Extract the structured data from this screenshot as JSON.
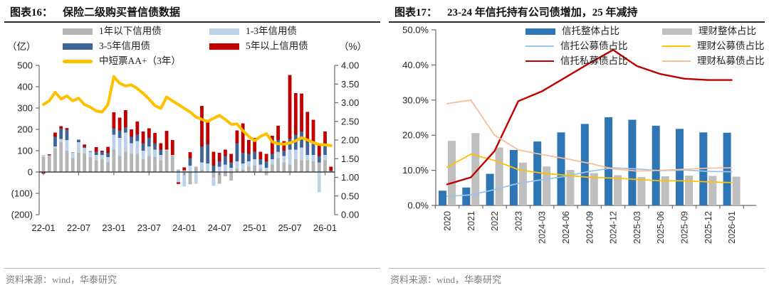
{
  "panels": [
    {
      "header": {
        "tag": "图表16：",
        "title": "保险二级购买普信债数据"
      },
      "source": "资料来源：wind，华泰研究"
    },
    {
      "header": {
        "tag": "图表17：",
        "title": "23-24 年信托持有公司债增加，25 年减持"
      },
      "source": "资料来源：wind，华泰研究"
    }
  ],
  "colors": {
    "bar_gray": "#b5b5b5",
    "bar_lightblue": "#bdd1e8",
    "bar_darkblue": "#3f6597",
    "bar_red": "#c00000",
    "line_yellow": "#ffc000",
    "r_bar_blue": "#2e75b6",
    "r_bar_gray": "#bfbfbf",
    "r_line_lightblue": "#9dc3e6",
    "r_line_yellow": "#ffc000",
    "r_line_red": "#c00000",
    "r_line_orange": "#f5bf9a",
    "axis": "#6a6a6a",
    "zero_line": "#1a1a1a",
    "tick_text": "#262626"
  },
  "chart_data": [
    {
      "type": "bar",
      "title": "保险二级购买普信债数据",
      "left_axis_label": "（亿）",
      "right_axis_label": "（%）",
      "left_ylim": [
        -200,
        500
      ],
      "right_ylim": [
        0,
        4
      ],
      "grid": false,
      "legend_position": "top",
      "left_yticks": [
        [
          500,
          "500"
        ],
        [
          400,
          "400"
        ],
        [
          300,
          "300"
        ],
        [
          200,
          "200"
        ],
        [
          100,
          "100"
        ],
        [
          0,
          "0"
        ],
        [
          -100,
          "(100)"
        ],
        [
          -200,
          "(200)"
        ]
      ],
      "right_yticks": [
        [
          4,
          "4.00"
        ],
        [
          3.5,
          "3.50"
        ],
        [
          3,
          "3.00"
        ],
        [
          2.5,
          "2.50"
        ],
        [
          2,
          "2.00"
        ],
        [
          1.5,
          "1.50"
        ],
        [
          1,
          "1.00"
        ],
        [
          0.5,
          "0.50"
        ],
        [
          0,
          "0.00"
        ]
      ],
      "x_tick_labels": [
        "22-01",
        "22-07",
        "23-01",
        "23-07",
        "24-01",
        "24-07",
        "25-01",
        "25-07",
        "26-01"
      ],
      "x_tick_month_index": [
        0,
        6,
        12,
        18,
        24,
        30,
        36,
        42,
        48
      ],
      "months": [
        "22-01",
        "22-02",
        "22-03",
        "22-04",
        "22-05",
        "22-06",
        "22-07",
        "22-08",
        "22-09",
        "22-10",
        "22-11",
        "22-12",
        "23-01",
        "23-02",
        "23-03",
        "23-04",
        "23-05",
        "23-06",
        "23-07",
        "23-08",
        "23-09",
        "23-10",
        "23-11",
        "23-12",
        "24-01",
        "24-02",
        "24-03",
        "24-04",
        "24-05",
        "24-06",
        "24-07",
        "24-08",
        "24-09",
        "24-10",
        "24-11",
        "24-12",
        "25-01",
        "25-02",
        "25-03",
        "25-04",
        "25-05",
        "25-06",
        "25-07",
        "25-08",
        "25-09",
        "25-10",
        "25-11",
        "25-12",
        "26-01",
        "26-02"
      ],
      "series": [
        {
          "name": "1年以下信用债",
          "type": "bar",
          "axis": "left",
          "color": "#b5b5b5",
          "swatch": "bar",
          "values": [
            70,
            75,
            110,
            140,
            100,
            65,
            90,
            88,
            70,
            55,
            60,
            45,
            105,
            75,
            95,
            85,
            85,
            60,
            75,
            70,
            55,
            100,
            78,
            12,
            8,
            -58,
            25,
            10,
            0,
            -25,
            -55,
            -20,
            -40,
            15,
            10,
            25,
            30,
            15,
            -15,
            35,
            65,
            45,
            35,
            60,
            55,
            55,
            50,
            45,
            55,
            5
          ]
        },
        {
          "name": "1-3年信用债",
          "type": "bar",
          "axis": "left",
          "color": "#bdd1e8",
          "swatch": "bar",
          "values": [
            10,
            3,
            10,
            15,
            50,
            25,
            50,
            25,
            25,
            25,
            20,
            25,
            70,
            85,
            90,
            50,
            60,
            40,
            45,
            35,
            25,
            5,
            2,
            -48,
            -68,
            30,
            -55,
            35,
            40,
            -40,
            25,
            35,
            20,
            35,
            30,
            25,
            30,
            20,
            20,
            25,
            30,
            30,
            70,
            45,
            60,
            25,
            30,
            -95,
            25,
            0
          ]
        },
        {
          "name": "3-5年信用债",
          "type": "bar",
          "axis": "left",
          "color": "#3f6597",
          "swatch": "bar",
          "values": [
            0,
            0,
            45,
            48,
            48,
            2,
            12,
            4,
            3,
            15,
            15,
            20,
            30,
            35,
            25,
            30,
            30,
            35,
            40,
            30,
            25,
            0,
            0,
            0,
            0,
            35,
            0,
            75,
            90,
            30,
            25,
            40,
            25,
            85,
            50,
            35,
            35,
            25,
            30,
            25,
            55,
            25,
            50,
            70,
            75,
            60,
            65,
            30,
            55,
            0
          ]
        },
        {
          "name": "5年以上信用债",
          "type": "bar",
          "axis": "left",
          "color": "#c00000",
          "swatch": "bar",
          "values": [
            -8,
            5,
            20,
            12,
            8,
            0,
            0,
            12,
            0,
            22,
            5,
            28,
            75,
            60,
            80,
            35,
            62,
            55,
            45,
            48,
            30,
            88,
            70,
            -8,
            14,
            28,
            0,
            190,
            103,
            65,
            40,
            30,
            40,
            60,
            138,
            65,
            65,
            35,
            35,
            85,
            67,
            45,
            300,
            195,
            178,
            142,
            100,
            50,
            55,
            20
          ]
        },
        {
          "name": "中短票AA+（3年）",
          "type": "line",
          "axis": "right",
          "color": "#ffc000",
          "swatch": "thickline",
          "values": [
            2.95,
            3.05,
            3.28,
            3.1,
            3.18,
            3.05,
            3.12,
            2.95,
            2.88,
            2.78,
            2.75,
            2.95,
            3.7,
            3.52,
            3.45,
            3.48,
            3.38,
            3.25,
            3.1,
            2.92,
            2.85,
            3.15,
            3.05,
            2.95,
            2.85,
            2.75,
            2.62,
            2.55,
            2.5,
            2.58,
            2.66,
            2.55,
            2.42,
            2.43,
            2.25,
            2.1,
            1.98,
            2.1,
            2.17,
            1.95,
            1.9,
            1.89,
            1.92,
            1.98,
            2.06,
            2.0,
            1.93,
            1.88,
            1.87,
            1.85
          ]
        }
      ]
    },
    {
      "type": "bar",
      "title": "23-24 年信托持有公司债增加，25 年减持",
      "ylim": [
        0,
        50
      ],
      "grid": false,
      "legend_position": "top",
      "yticks": [
        [
          50,
          "50.0%"
        ],
        [
          40,
          "40.0%"
        ],
        [
          30,
          "30.0%"
        ],
        [
          20,
          "20.0%"
        ],
        [
          10,
          "10.0%"
        ],
        [
          0,
          "0.0%"
        ]
      ],
      "categories": [
        "2020",
        "2021",
        "2022",
        "2023",
        "2024-03",
        "2024-06",
        "2024-09",
        "2024-12",
        "2025-03",
        "2025-06",
        "2025-09",
        "2025-12",
        "2026-01"
      ],
      "series": [
        {
          "name": "信托整体占比",
          "type": "bar",
          "color": "#2e75b6",
          "swatch": "bar",
          "values": [
            4.2,
            5.1,
            9.0,
            15.8,
            18.2,
            20.8,
            23.2,
            25.1,
            24.4,
            22.7,
            21.8,
            20.8,
            20.7
          ]
        },
        {
          "name": "理财整体占比",
          "type": "bar",
          "color": "#bfbfbf",
          "swatch": "bar",
          "values": [
            18.4,
            20.6,
            16.5,
            12.2,
            11.1,
            10.1,
            9.2,
            8.6,
            8.1,
            8.3,
            8.5,
            8.4,
            8.2
          ]
        },
        {
          "name": "信托公募债占比",
          "type": "line",
          "color": "#9dc3e6",
          "swatch": "line",
          "values": [
            2.6,
            3.0,
            4.5,
            6.3,
            7.3,
            8.3,
            9.7,
            10.7,
            10.4,
            9.9,
            10.1,
            9.7,
            9.6
          ]
        },
        {
          "name": "理财公募债占比",
          "type": "line",
          "color": "#ffc000",
          "swatch": "line",
          "values": [
            10.9,
            14.6,
            12.8,
            10.2,
            9.2,
            8.6,
            8.0,
            7.8,
            7.4,
            7.0,
            7.0,
            6.7,
            6.5
          ]
        },
        {
          "name": "信托私募债占比",
          "type": "line",
          "color": "#c00000",
          "swatch": "line2",
          "values": [
            6.0,
            8.0,
            15.5,
            29.7,
            32.5,
            36.5,
            40.5,
            44.3,
            39.7,
            37.4,
            36.1,
            35.7,
            35.7
          ]
        },
        {
          "name": "理财私募债占比",
          "type": "line",
          "color": "#f5bf9a",
          "swatch": "line",
          "values": [
            29.0,
            30.0,
            20.0,
            15.8,
            14.5,
            13.3,
            12.0,
            10.4,
            9.8,
            10.0,
            10.3,
            10.6,
            10.7
          ]
        }
      ]
    }
  ]
}
